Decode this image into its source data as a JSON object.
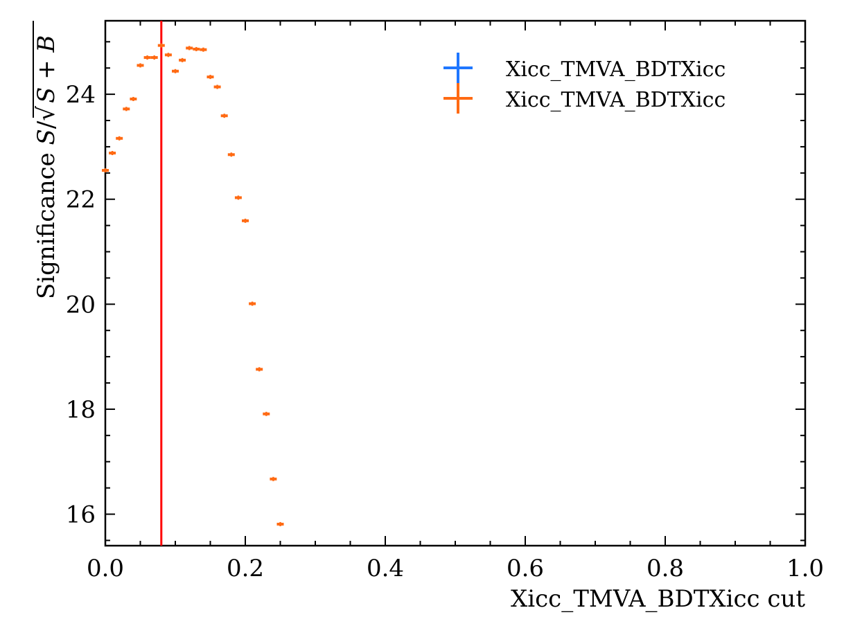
{
  "chart_data": {
    "type": "scatter",
    "xlabel": "Xicc_TMVA_BDTXicc cut",
    "ylabel": {
      "prefix": "Significance ",
      "italic_s": "S",
      "slash": "/",
      "sqrt": "√",
      "radicand": "S + B"
    },
    "xlim": [
      0.0,
      1.0
    ],
    "ylim": [
      15.4,
      25.4
    ],
    "x_ticks": [
      "0.0",
      "0.2",
      "0.4",
      "0.6",
      "0.8",
      "1.0"
    ],
    "x_tick_values": [
      0.0,
      0.2,
      0.4,
      0.6,
      0.8,
      1.0
    ],
    "y_ticks": [
      "16",
      "18",
      "20",
      "22",
      "24"
    ],
    "y_tick_values": [
      16,
      18,
      20,
      22,
      24
    ],
    "cut_line": {
      "x": 0.08,
      "color": "#ff0000"
    },
    "grid": false,
    "legend_position": "top-right",
    "series": [
      {
        "name": "Xicc_TMVA_BDTXicc",
        "color": "#1f77ff",
        "x": [],
        "y": []
      },
      {
        "name": "Xicc_TMVA_BDTXicc",
        "color": "#ff6a13",
        "x": [
          0.0,
          0.01,
          0.02,
          0.03,
          0.04,
          0.05,
          0.06,
          0.07,
          0.08,
          0.09,
          0.1,
          0.11,
          0.12,
          0.13,
          0.14,
          0.15,
          0.16,
          0.17,
          0.18,
          0.19,
          0.2,
          0.21,
          0.22,
          0.23,
          0.24,
          0.25
        ],
        "y": [
          22.55,
          22.88,
          23.16,
          23.72,
          23.91,
          24.55,
          24.7,
          24.7,
          24.93,
          24.75,
          24.44,
          24.65,
          24.88,
          24.86,
          24.85,
          24.33,
          24.14,
          23.59,
          22.85,
          22.03,
          21.59,
          20.01,
          18.76,
          17.91,
          16.67,
          15.81
        ]
      }
    ]
  }
}
